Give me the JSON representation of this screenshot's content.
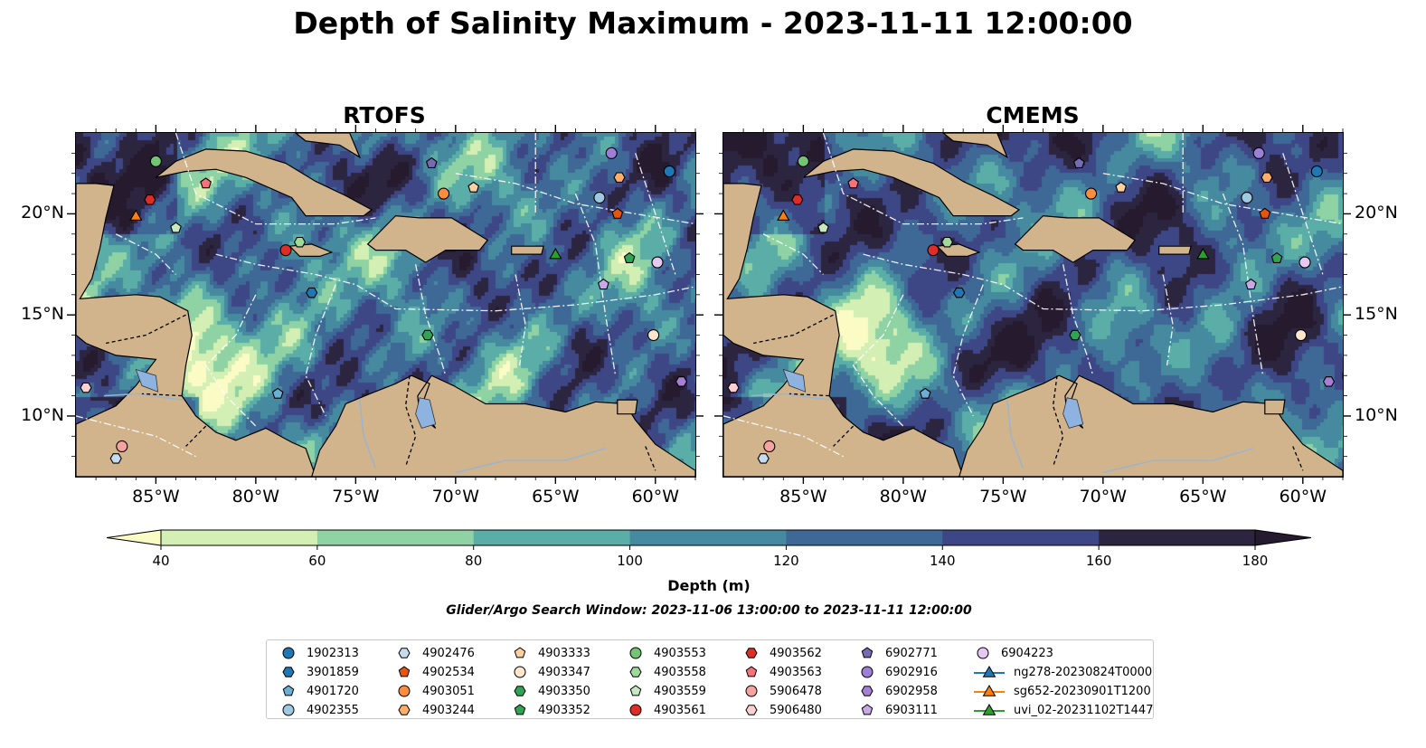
{
  "title": "Depth of Salinity Maximum - 2023-11-11 12:00:00",
  "window_note": "Glider/Argo Search Window: 2023-11-06 13:00:00 to 2023-11-11 12:00:00",
  "colors": {
    "land": "#d2b48c",
    "lake": "#8fb3e0",
    "river": "#9ab4d0",
    "levels": [
      "#fbfbc6",
      "#d3efb3",
      "#8fd3a5",
      "#5aaea7",
      "#468aa0",
      "#3e6896",
      "#3e4786",
      "#2c2540",
      "#261a2f"
    ]
  },
  "chart_data": [
    {
      "type": "heatmap",
      "title": "RTOFS",
      "lon_range": [
        -89,
        -58
      ],
      "lat_range": [
        7,
        24
      ],
      "x_ticks": [
        "85°W",
        "80°W",
        "75°W",
        "70°W",
        "65°W",
        "60°W"
      ],
      "x_tick_values": [
        -85,
        -80,
        -75,
        -70,
        -65,
        -60
      ],
      "y_ticks": [
        "10°N",
        "15°N",
        "20°N"
      ],
      "y_tick_values": [
        10,
        15,
        20
      ]
    },
    {
      "type": "heatmap",
      "title": "CMEMS",
      "lon_range": [
        -89,
        -58
      ],
      "lat_range": [
        7,
        24
      ],
      "x_ticks": [
        "85°W",
        "80°W",
        "75°W",
        "70°W",
        "65°W",
        "60°W"
      ],
      "x_tick_values": [
        -85,
        -80,
        -75,
        -70,
        -65,
        -60
      ],
      "y_ticks": [
        "10°N",
        "15°N",
        "20°N"
      ],
      "y_tick_values": [
        10,
        15,
        20
      ]
    }
  ],
  "colorbar": {
    "label": "Depth (m)",
    "ticks": [
      "40",
      "60",
      "80",
      "100",
      "120",
      "140",
      "160",
      "180"
    ],
    "tick_values": [
      40,
      60,
      80,
      100,
      120,
      140,
      160,
      180
    ],
    "extend": "both"
  },
  "observations": [
    {
      "id": "1902313",
      "marker": "circle",
      "color": "#1f77b4",
      "lon": -59.3,
      "lat": 22.1
    },
    {
      "id": "3901859",
      "marker": "hexagon",
      "color": "#1f77b4",
      "lon": -77.2,
      "lat": 16.1
    },
    {
      "id": "4901720",
      "marker": "pentagon",
      "color": "#6baed6",
      "lon": -78.9,
      "lat": 11.1
    },
    {
      "id": "4902355",
      "marker": "circle",
      "color": "#9ecae1",
      "lon": -62.8,
      "lat": 20.8
    },
    {
      "id": "4902476",
      "marker": "hexagon",
      "color": "#c6dbef",
      "lon": -87.0,
      "lat": 7.9
    },
    {
      "id": "4902534",
      "marker": "pentagon",
      "color": "#e6550d",
      "lon": -61.9,
      "lat": 20.0
    },
    {
      "id": "4903051",
      "marker": "circle",
      "color": "#fd8d3c",
      "lon": -70.6,
      "lat": 21.0
    },
    {
      "id": "4903244",
      "marker": "hexagon",
      "color": "#fdae6b",
      "lon": -61.8,
      "lat": 21.8
    },
    {
      "id": "4903333",
      "marker": "pentagon",
      "color": "#fdd0a2",
      "lon": -69.1,
      "lat": 21.3
    },
    {
      "id": "4903347",
      "marker": "circle",
      "color": "#fee6ce",
      "lon": -60.1,
      "lat": 14.0
    },
    {
      "id": "4903350",
      "marker": "hexagon",
      "color": "#31a354",
      "lon": -71.4,
      "lat": 14.0
    },
    {
      "id": "4903352",
      "marker": "pentagon",
      "color": "#31a354",
      "lon": -61.3,
      "lat": 17.8
    },
    {
      "id": "4903553",
      "marker": "circle",
      "color": "#74c476",
      "lon": -85.0,
      "lat": 22.6
    },
    {
      "id": "4903558",
      "marker": "hexagon",
      "color": "#a1d99b",
      "lon": -77.8,
      "lat": 18.6
    },
    {
      "id": "4903559",
      "marker": "pentagon",
      "color": "#c7e9c0",
      "lon": -84.0,
      "lat": 19.3
    },
    {
      "id": "4903561",
      "marker": "circle",
      "color": "#de2d26",
      "lon": -78.5,
      "lat": 18.2
    },
    {
      "id": "4903562",
      "marker": "hexagon",
      "color": "#de2d26",
      "lon": -85.3,
      "lat": 20.7
    },
    {
      "id": "4903563",
      "marker": "pentagon",
      "color": "#f4727a",
      "lon": -82.5,
      "lat": 21.5
    },
    {
      "id": "5906478",
      "marker": "circle",
      "color": "#f4a3a0",
      "lon": -86.7,
      "lat": 8.5
    },
    {
      "id": "5906480",
      "marker": "hexagon",
      "color": "#fcd0d0",
      "lon": -88.5,
      "lat": 11.4
    },
    {
      "id": "6902771",
      "marker": "pentagon",
      "color": "#756bb1",
      "lon": -71.2,
      "lat": 22.5
    },
    {
      "id": "6902916",
      "marker": "circle",
      "color": "#9e7fd6",
      "lon": -62.2,
      "lat": 23.0
    },
    {
      "id": "6902958",
      "marker": "hexagon",
      "color": "#a87fd6",
      "lon": -58.7,
      "lat": 11.7
    },
    {
      "id": "6903111",
      "marker": "pentagon",
      "color": "#c7a9e6",
      "lon": -62.6,
      "lat": 16.5
    },
    {
      "id": "6904223",
      "marker": "circle",
      "color": "#e6c9f2",
      "lon": -59.9,
      "lat": 17.6
    },
    {
      "id": "ng278-20230824T0000",
      "marker": "triangle",
      "color": "#1f77b4",
      "lon": null,
      "lat": null
    },
    {
      "id": "sg652-20230901T1200",
      "marker": "triangle",
      "color": "#ff7f0e",
      "lon": -86.0,
      "lat": 19.9
    },
    {
      "id": "uvi_02-20231102T1447",
      "marker": "triangle",
      "color": "#2ca02c",
      "lon": -65.0,
      "lat": 18.0
    }
  ]
}
